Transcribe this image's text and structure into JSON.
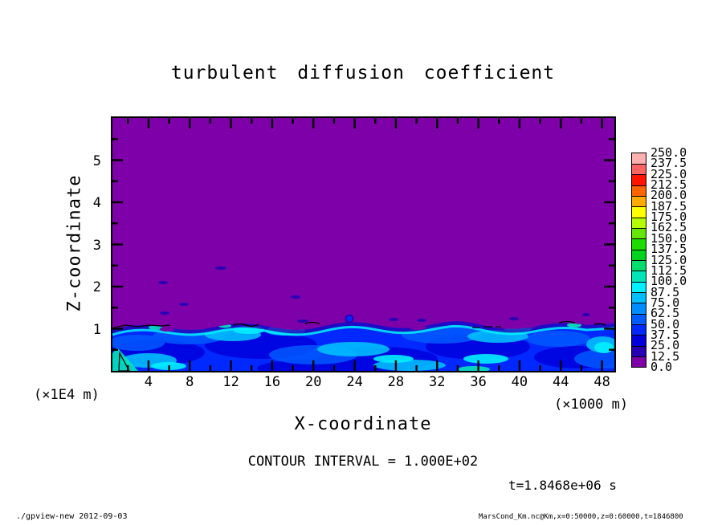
{
  "title": "turbulent diffusion coefficient",
  "chart_data": {
    "type": "heatmap",
    "title": "turbulent diffusion coefficient",
    "xlabel": "X-coordinate",
    "ylabel": "Z-coordinate",
    "x_unit_note": "(×1E4 m)",
    "x_unit_note_right": "(×1000 m)",
    "xlim": [
      0,
      50
    ],
    "ylim": [
      0,
      6
    ],
    "x_ticks": [
      4,
      8,
      12,
      16,
      20,
      24,
      28,
      32,
      36,
      40,
      44,
      48
    ],
    "x_minor_step": 2,
    "y_ticks": [
      1,
      2,
      3,
      4,
      5
    ],
    "y_minor_step": 0.5,
    "levels": [
      0.0,
      12.5,
      25.0,
      37.5,
      50.0,
      62.5,
      75.0,
      87.5,
      100.0,
      112.5,
      125.0,
      137.5,
      150.0,
      162.5,
      175.0,
      187.5,
      200.0,
      212.5,
      225.0,
      237.5,
      250.0
    ],
    "palette": [
      "#7D00A8",
      "#2800B4",
      "#0000DC",
      "#0028FF",
      "#005AFF",
      "#008CFF",
      "#00BEFF",
      "#00F0FF",
      "#00E6B9",
      "#00DC6E",
      "#00D21E",
      "#1EDC00",
      "#64E600",
      "#B4FF00",
      "#FFFF00",
      "#FFAA00",
      "#FF6400",
      "#FF1400",
      "#FF6464",
      "#FFB0B0"
    ],
    "contour_interval_label": "CONTOUR INTERVAL = 1.000E+02",
    "time_label": "t=1.8468e+06 s",
    "field_summary": {
      "background_bin": "0.0-12.5 (purple) above the boundary layer",
      "boundary_layer_top_z": 1.0,
      "band_bins": "mostly 25-112.5 (blues/cyans, green patches) below z≈1"
    }
  },
  "footer": {
    "left": "./gpview-new  2012-09-03",
    "right": "MarsCond_Km.nc@Km,x=0:50000,z=0:60000,t=1846800"
  }
}
